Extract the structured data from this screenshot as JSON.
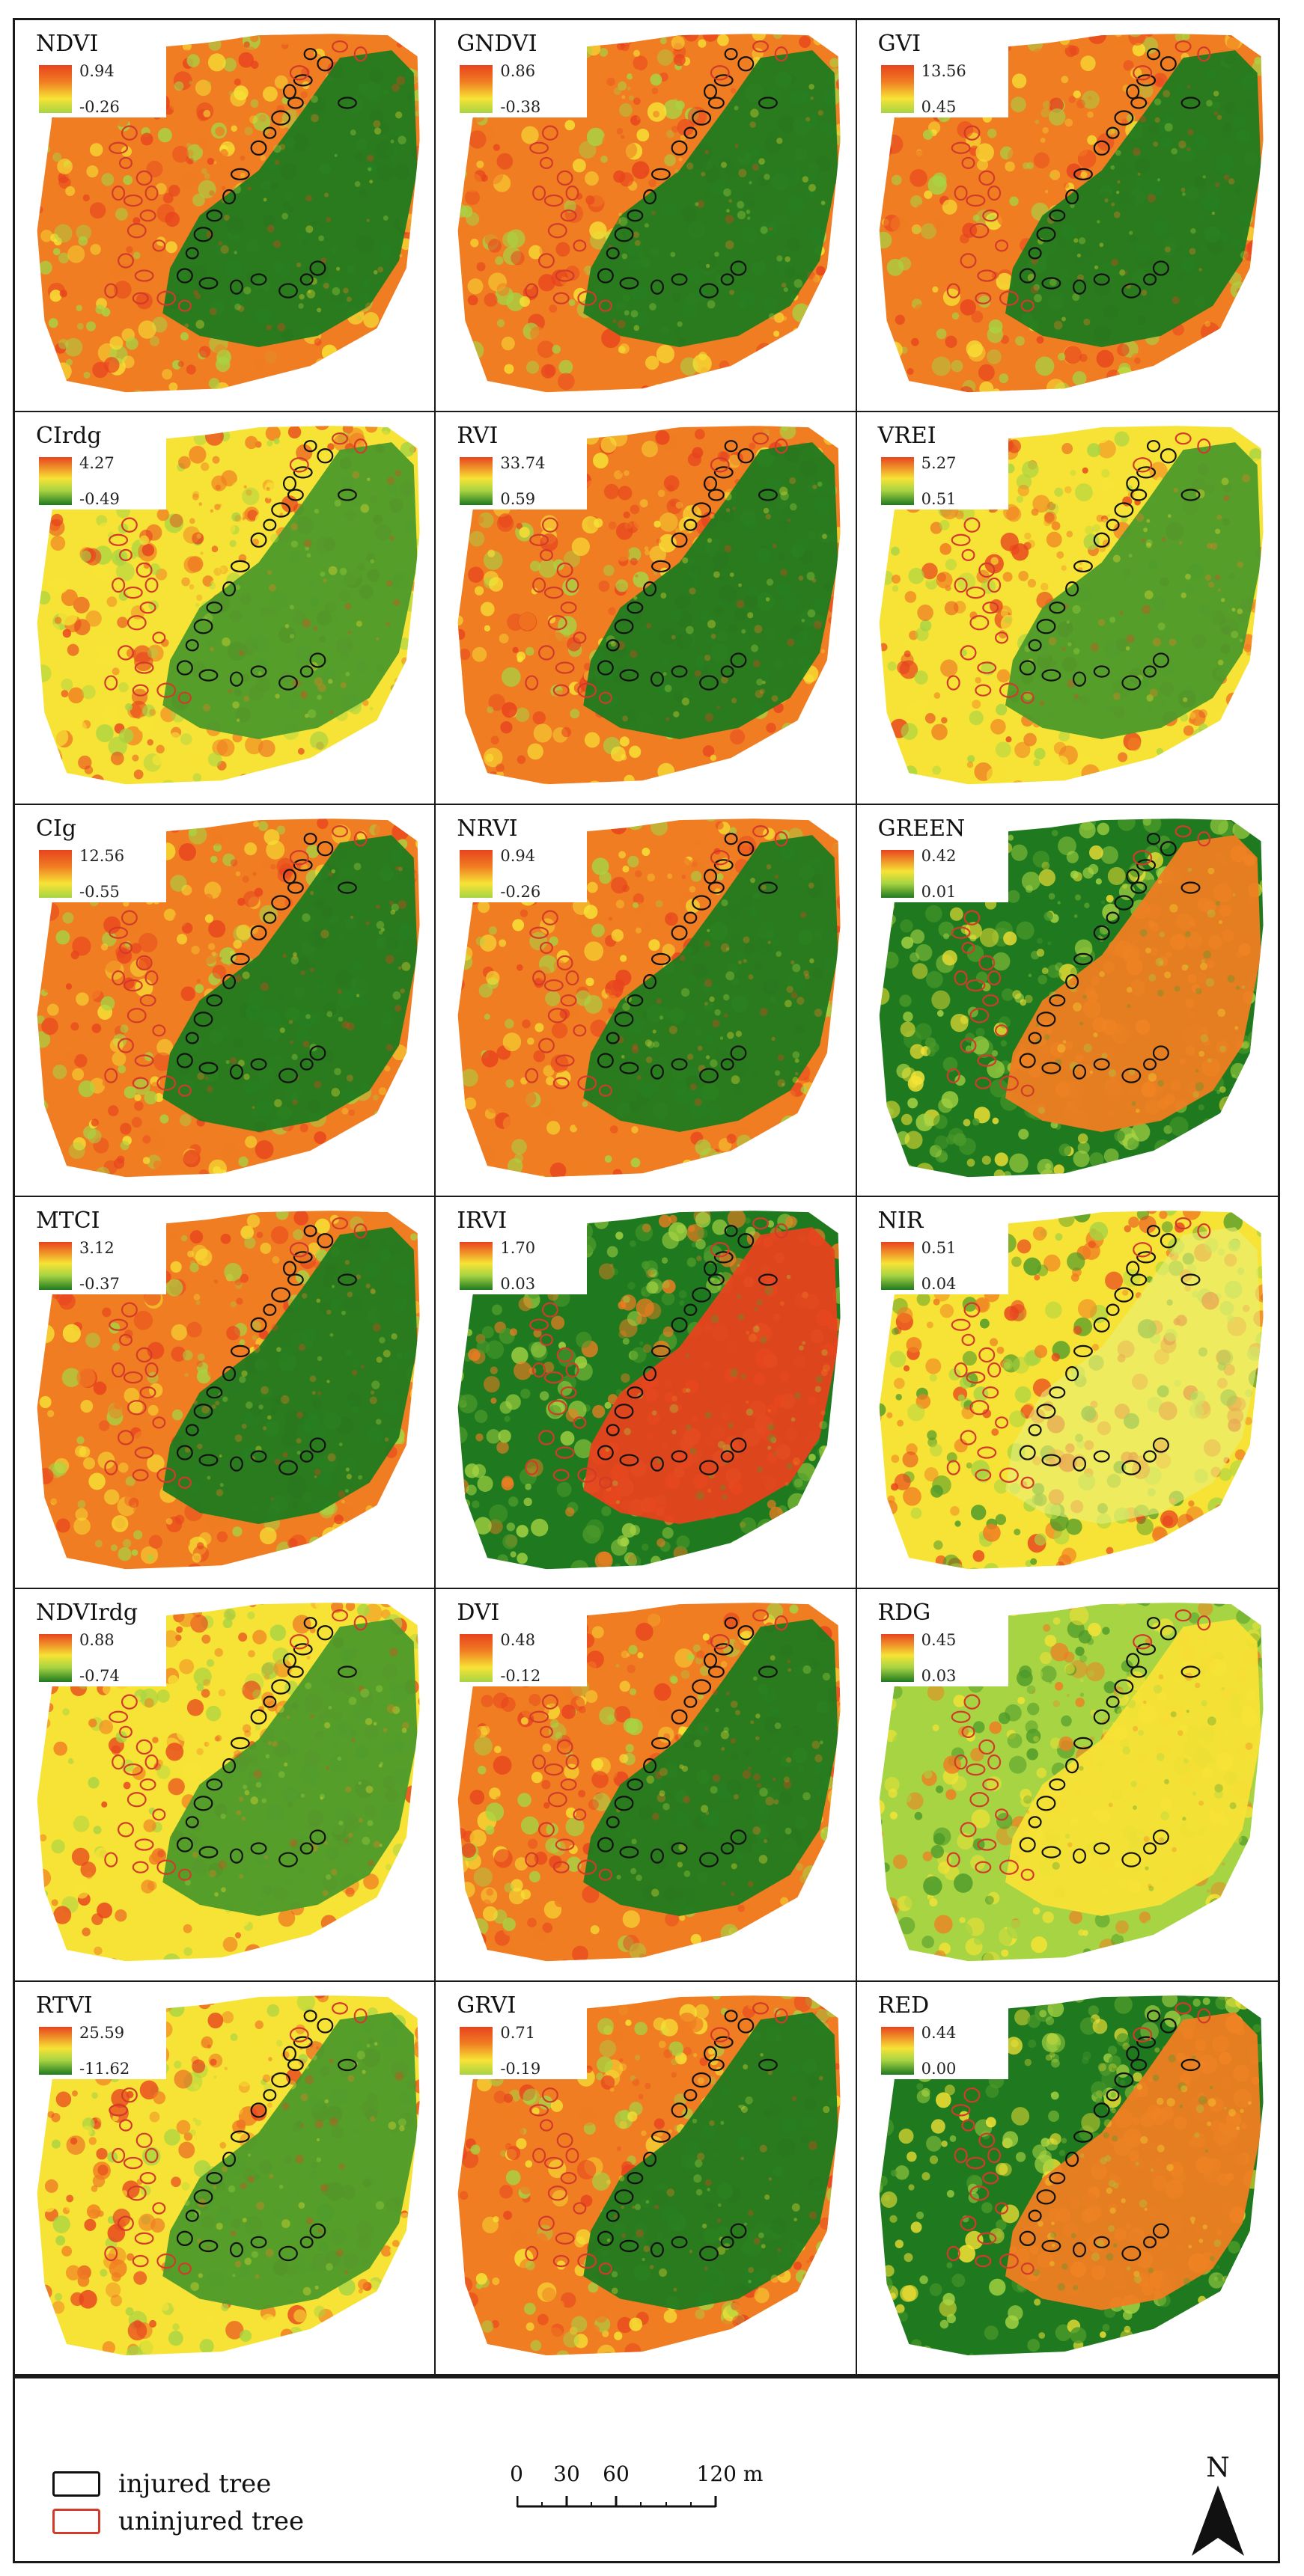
{
  "panels": [
    {
      "name": "NDVI",
      "max": "0.94",
      "min": "-0.26",
      "ramp": "yor",
      "pattern": "dark"
    },
    {
      "name": "GNDVI",
      "max": "0.86",
      "min": "-0.38",
      "ramp": "yor",
      "pattern": "dark"
    },
    {
      "name": "GVI",
      "max": "13.56",
      "min": "0.45",
      "ramp": "yor",
      "pattern": "dark"
    },
    {
      "name": "CIrdg",
      "max": "4.27",
      "min": "-0.49",
      "ramp": "rg",
      "pattern": "mid"
    },
    {
      "name": "RVI",
      "max": "33.74",
      "min": "0.59",
      "ramp": "rg",
      "pattern": "dark"
    },
    {
      "name": "VREI",
      "max": "5.27",
      "min": "0.51",
      "ramp": "rg",
      "pattern": "mid"
    },
    {
      "name": "CIg",
      "max": "12.56",
      "min": "-0.55",
      "ramp": "yor",
      "pattern": "dark"
    },
    {
      "name": "NRVI",
      "max": "0.94",
      "min": "-0.26",
      "ramp": "yor",
      "pattern": "dark"
    },
    {
      "name": "GREEN",
      "max": "0.42",
      "min": "0.01",
      "ramp": "rg",
      "pattern": "inverse"
    },
    {
      "name": "MTCI",
      "max": "3.12",
      "min": "-0.37",
      "ramp": "rg",
      "pattern": "dark"
    },
    {
      "name": "IRVI",
      "max": "1.70",
      "min": "0.03",
      "ramp": "rg",
      "pattern": "inverse-red"
    },
    {
      "name": "NIR",
      "max": "0.51",
      "min": "0.04",
      "ramp": "rg",
      "pattern": "speckle"
    },
    {
      "name": "NDVIrdg",
      "max": "0.88",
      "min": "-0.74",
      "ramp": "rg",
      "pattern": "mid"
    },
    {
      "name": "DVI",
      "max": "0.48",
      "min": "-0.12",
      "ramp": "yor",
      "pattern": "dark"
    },
    {
      "name": "RDG",
      "max": "0.45",
      "min": "0.03",
      "ramp": "rg",
      "pattern": "inverse-light"
    },
    {
      "name": "RTVI",
      "max": "25.59",
      "min": "-11.62",
      "ramp": "rg",
      "pattern": "mid"
    },
    {
      "name": "GRVI",
      "max": "0.71",
      "min": "-0.19",
      "ramp": "yor",
      "pattern": "dark"
    },
    {
      "name": "RED",
      "max": "0.44",
      "min": "0.00",
      "ramp": "rg",
      "pattern": "inverse"
    }
  ],
  "legend": {
    "injured_label": "injured tree",
    "uninjured_label": "uninjured tree",
    "injured_color": "#111111",
    "uninjured_color": "#d23a2a"
  },
  "scale_bar": {
    "ticks": [
      "0",
      "30",
      "60",
      "120 m"
    ],
    "distances_m": [
      0,
      30,
      60,
      120
    ]
  },
  "north_arrow": {
    "label": "N"
  },
  "colors": {
    "red": "#e8431e",
    "orange": "#f07d22",
    "yellow": "#f7e335",
    "light_green": "#a7d443",
    "green": "#4c9a2a",
    "dark_green": "#1f7a1f"
  }
}
